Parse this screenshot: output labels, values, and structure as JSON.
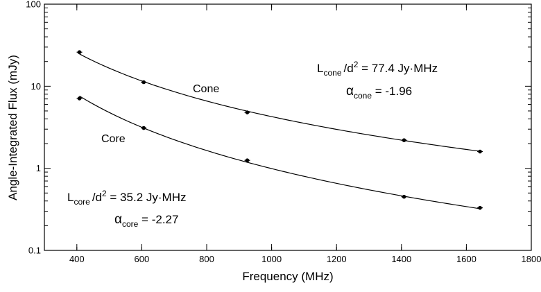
{
  "chart_data": {
    "type": "scatter",
    "title": "",
    "xlabel": "Frequency (MHz)",
    "ylabel": "Angle-Integrated Flux (mJy)",
    "xlim": [
      300,
      1800
    ],
    "ylim": [
      0.1,
      100
    ],
    "yscale": "log",
    "grid": false,
    "x_ticks": [
      400,
      600,
      800,
      1000,
      1200,
      1400,
      1600,
      1800
    ],
    "x_tick_labels": [
      "400",
      "600",
      "800",
      "1000",
      "1200",
      "1400",
      "1600",
      "1800"
    ],
    "y_ticks": [
      0.1,
      1,
      10,
      100
    ],
    "y_tick_labels": [
      "0.1",
      "1",
      "10",
      "100"
    ],
    "series": [
      {
        "name": "Cone",
        "x": [
          408,
          606,
          925,
          1408,
          1642
        ],
        "y": [
          26.0,
          11.2,
          4.8,
          2.2,
          1.6
        ],
        "fit": {
          "normalization": 77.4,
          "index": -1.96,
          "units": "Jy·MHz"
        }
      },
      {
        "name": "Core",
        "x": [
          408,
          606,
          925,
          1408,
          1642
        ],
        "y": [
          7.1,
          3.1,
          1.25,
          0.45,
          0.33
        ],
        "fit": {
          "normalization": 35.2,
          "index": -2.27,
          "units": "Jy·MHz"
        }
      }
    ],
    "annotations": {
      "cone_L": {
        "L": "L",
        "sub": "cone",
        "rest": "/d",
        "sup": "2",
        "eq": " = 77.4  Jy·MHz"
      },
      "cone_alpha": {
        "alpha": "α",
        "sub": "cone",
        "eq": " = -1.96"
      },
      "core_L": {
        "L": "L",
        "sub": "core",
        "rest": "/d",
        "sup": "2",
        "eq": " = 35.2  Jy·MHz"
      },
      "core_alpha": {
        "alpha": "α",
        "sub": "core",
        "eq": " = -2.27"
      }
    }
  }
}
